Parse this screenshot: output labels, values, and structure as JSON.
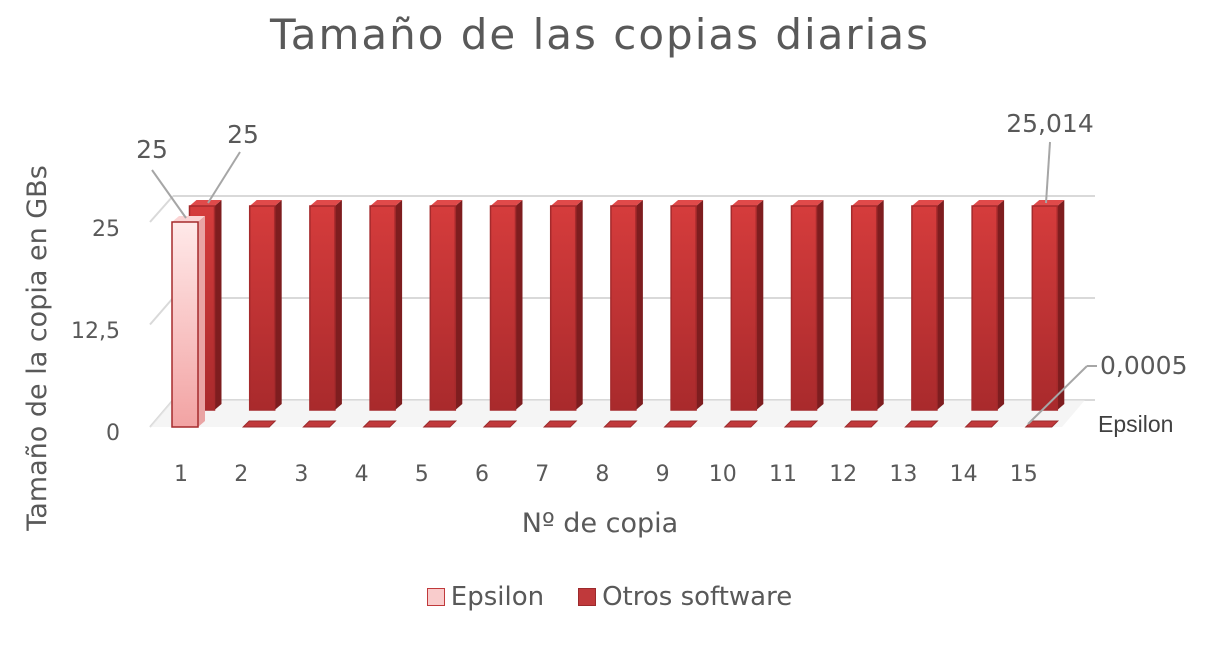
{
  "chart_data": {
    "type": "bar",
    "title": "Tamaño de las copias diarias",
    "xlabel": "Nº de copia",
    "ylabel": "Tamaño de la copia en GBs",
    "categories": [
      "1",
      "2",
      "3",
      "4",
      "5",
      "6",
      "7",
      "8",
      "9",
      "10",
      "11",
      "12",
      "13",
      "14",
      "15"
    ],
    "yticks": [
      "0",
      "12,5",
      "25"
    ],
    "ylim": [
      0,
      25
    ],
    "grid": true,
    "legend_position": "bottom",
    "series": [
      {
        "name": "Epsilon",
        "color": "#f4b7b7",
        "values": [
          25,
          0.0005,
          0.0005,
          0.0005,
          0.0005,
          0.0005,
          0.0005,
          0.0005,
          0.0005,
          0.0005,
          0.0005,
          0.0005,
          0.0005,
          0.0005,
          0.0005
        ]
      },
      {
        "name": "Otros software",
        "color": "#c0393b",
        "values": [
          25,
          25,
          25,
          25,
          25,
          25,
          25,
          25,
          25,
          25,
          25,
          25,
          25,
          25,
          25.014
        ]
      }
    ],
    "data_labels": [
      {
        "text": "25"
      },
      {
        "text": "25"
      },
      {
        "text": "25,014"
      },
      {
        "text": "0,0005"
      }
    ],
    "series_tag": "Epsilon"
  }
}
